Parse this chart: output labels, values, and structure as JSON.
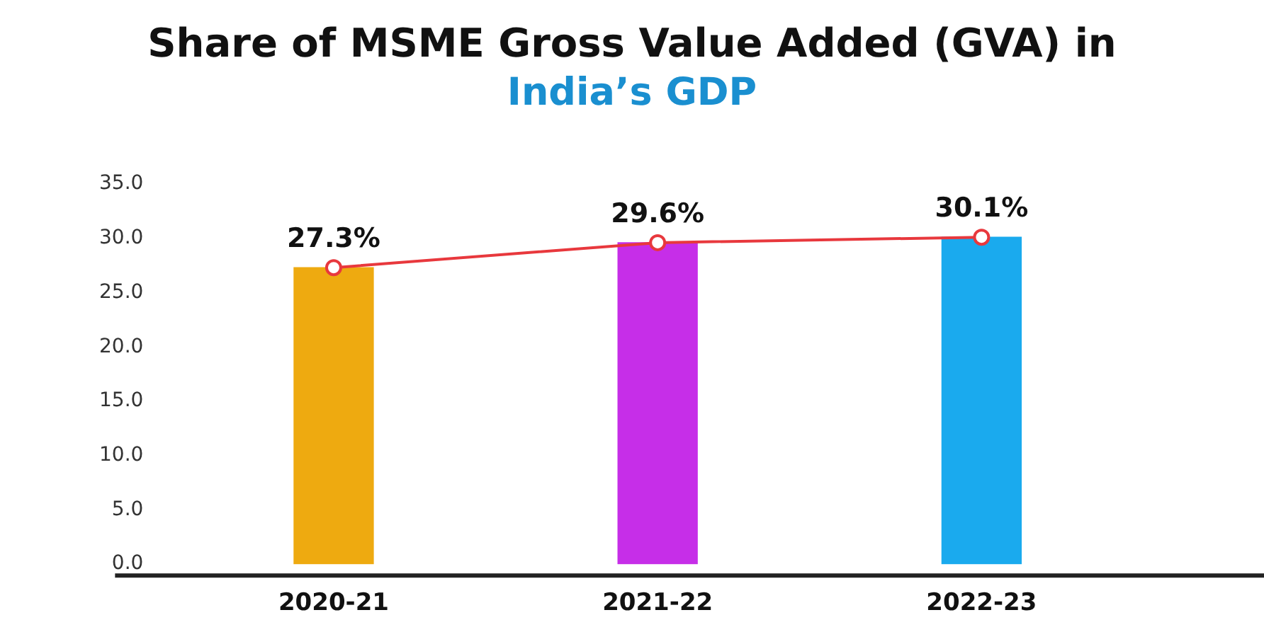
{
  "chart_data": {
    "type": "bar",
    "title": "Share of MSME Gross Value Added (GVA) in",
    "subtitle": "India’s GDP",
    "categories": [
      "2020-21",
      "2021-22",
      "2022-23"
    ],
    "series": [
      {
        "colors": [
          "#eeaa10",
          "#c62ee8",
          "#1aaaee"
        ],
        "values": [
          27.3,
          29.6,
          30.1
        ]
      },
      {
        "type": "line",
        "color": "#e8383d",
        "marker": "circle",
        "values": [
          27.3,
          29.6,
          30.1
        ],
        "value_labels": [
          "27.3%",
          "29.6%",
          "30.1%"
        ]
      }
    ],
    "ylim": [
      0,
      35
    ],
    "yticks": [
      {
        "value": 0,
        "label": "0.0"
      },
      {
        "value": 5,
        "label": "5.0"
      },
      {
        "value": 10,
        "label": "10.0"
      },
      {
        "value": 15,
        "label": "15.0"
      },
      {
        "value": 20,
        "label": "20.0"
      },
      {
        "value": 25,
        "label": "25.0"
      },
      {
        "value": 30,
        "label": "30.0"
      },
      {
        "value": 35,
        "label": "35.0"
      }
    ],
    "grid": false,
    "legend": false
  }
}
